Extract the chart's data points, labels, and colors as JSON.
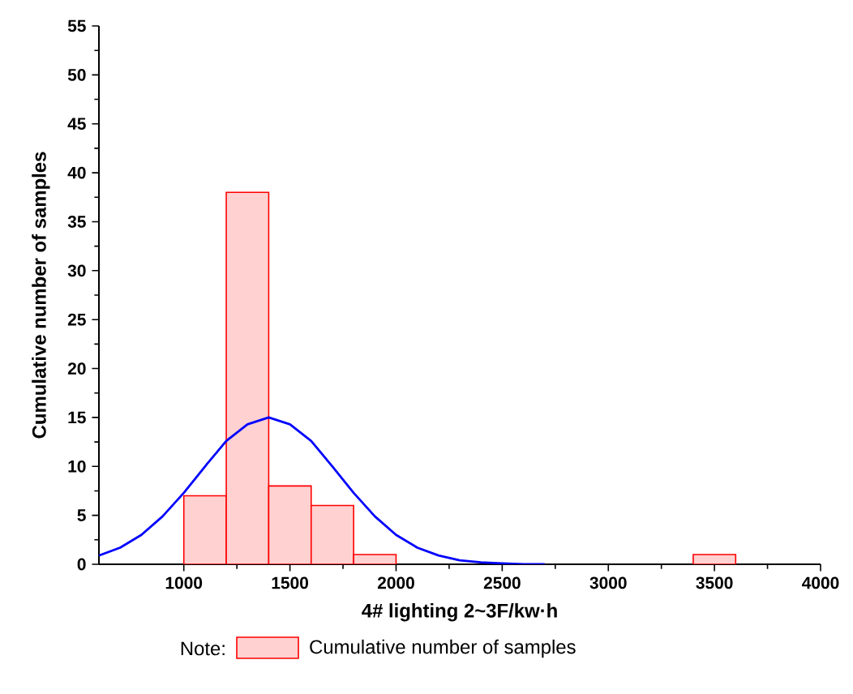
{
  "chart_data": {
    "type": "histogram",
    "xlabel": "4# lighting 2~3F/kw·h",
    "ylabel": "Cumulative number of samples",
    "legend_title": "Note:",
    "legend": "bottom",
    "grid": false,
    "xlim": [
      600,
      4000
    ],
    "xticks": [
      1000,
      1500,
      2000,
      2500,
      3000,
      3500,
      4000
    ],
    "ylim": [
      0,
      55
    ],
    "yticks": [
      0,
      5,
      10,
      15,
      20,
      25,
      30,
      35,
      40,
      45,
      50,
      55
    ],
    "series": [
      {
        "name": "Cumulative number of samples",
        "color": "#ff0000",
        "bins": [
          1000,
          1200,
          1400,
          1600,
          1800,
          2000,
          2200,
          2400,
          2600,
          2800,
          3000,
          3200,
          3400,
          3600
        ],
        "values": [
          7,
          38,
          8,
          6,
          1,
          0,
          0,
          0,
          0,
          0,
          0,
          0,
          1
        ]
      },
      {
        "type": "line",
        "color": "#0000ff",
        "x": [
          600,
          700,
          800,
          900,
          1000,
          1100,
          1200,
          1300,
          1400,
          1500,
          1600,
          1700,
          1800,
          1900,
          2000,
          2100,
          2200,
          2300,
          2400,
          2500,
          2600,
          2700
        ],
        "values": [
          0.9,
          1.7,
          3.0,
          4.9,
          7.3,
          10.0,
          12.6,
          14.3,
          15.0,
          14.3,
          12.6,
          10.0,
          7.3,
          4.9,
          3.0,
          1.7,
          0.9,
          0.4,
          0.2,
          0.1,
          0.0,
          0.0
        ]
      }
    ]
  }
}
